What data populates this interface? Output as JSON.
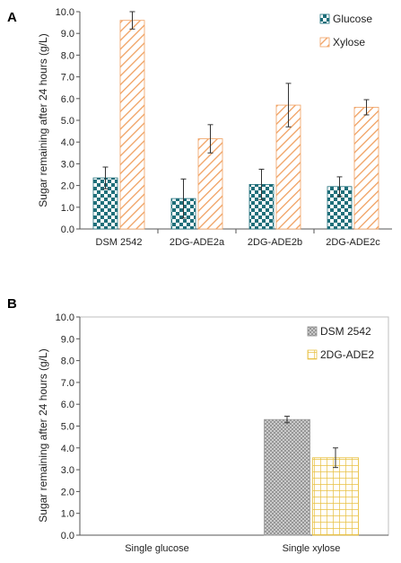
{
  "chart_data": [
    {
      "type": "bar",
      "panel_label": "A",
      "categories": [
        "DSM 2542",
        "2DG-ADE2a",
        "2DG-ADE2b",
        "2DG-ADE2c"
      ],
      "ylabel": "Sugar remaining after 24 hours (g/L)",
      "ylim": [
        0,
        10
      ],
      "yticks": [
        "0.0",
        "1.0",
        "2.0",
        "3.0",
        "4.0",
        "5.0",
        "6.0",
        "7.0",
        "8.0",
        "9.0",
        "10.0"
      ],
      "grid": false,
      "legend_position": "top-right",
      "series": [
        {
          "name": "Glucose",
          "values": [
            2.35,
            1.4,
            2.05,
            1.95
          ],
          "errors": [
            0.5,
            0.9,
            0.7,
            0.45
          ],
          "color": "#1f6f7a",
          "pattern": "checker"
        },
        {
          "name": "Xylose",
          "values": [
            9.6,
            4.15,
            5.7,
            5.6
          ],
          "errors": [
            0.4,
            0.65,
            1.0,
            0.35
          ],
          "color": "#f0a060",
          "pattern": "diagonal"
        }
      ]
    },
    {
      "type": "bar",
      "panel_label": "B",
      "categories": [
        "Single glucose",
        "Single xylose"
      ],
      "ylabel": "Sugar remaining after 24 hours (g/L)",
      "ylim": [
        0,
        10
      ],
      "yticks": [
        "0.0",
        "1.0",
        "2.0",
        "3.0",
        "4.0",
        "5.0",
        "6.0",
        "7.0",
        "8.0",
        "9.0",
        "10.0"
      ],
      "grid": false,
      "legend_position": "top-right",
      "series": [
        {
          "name": "DSM 2542",
          "values": [
            0,
            5.3
          ],
          "errors": [
            0,
            0.15
          ],
          "color": "#9a9a9a",
          "pattern": "crosshatch"
        },
        {
          "name": "2DG-ADE2",
          "values": [
            0,
            3.55
          ],
          "errors": [
            0,
            0.45
          ],
          "color": "#e8c040",
          "pattern": "grid"
        }
      ]
    }
  ]
}
